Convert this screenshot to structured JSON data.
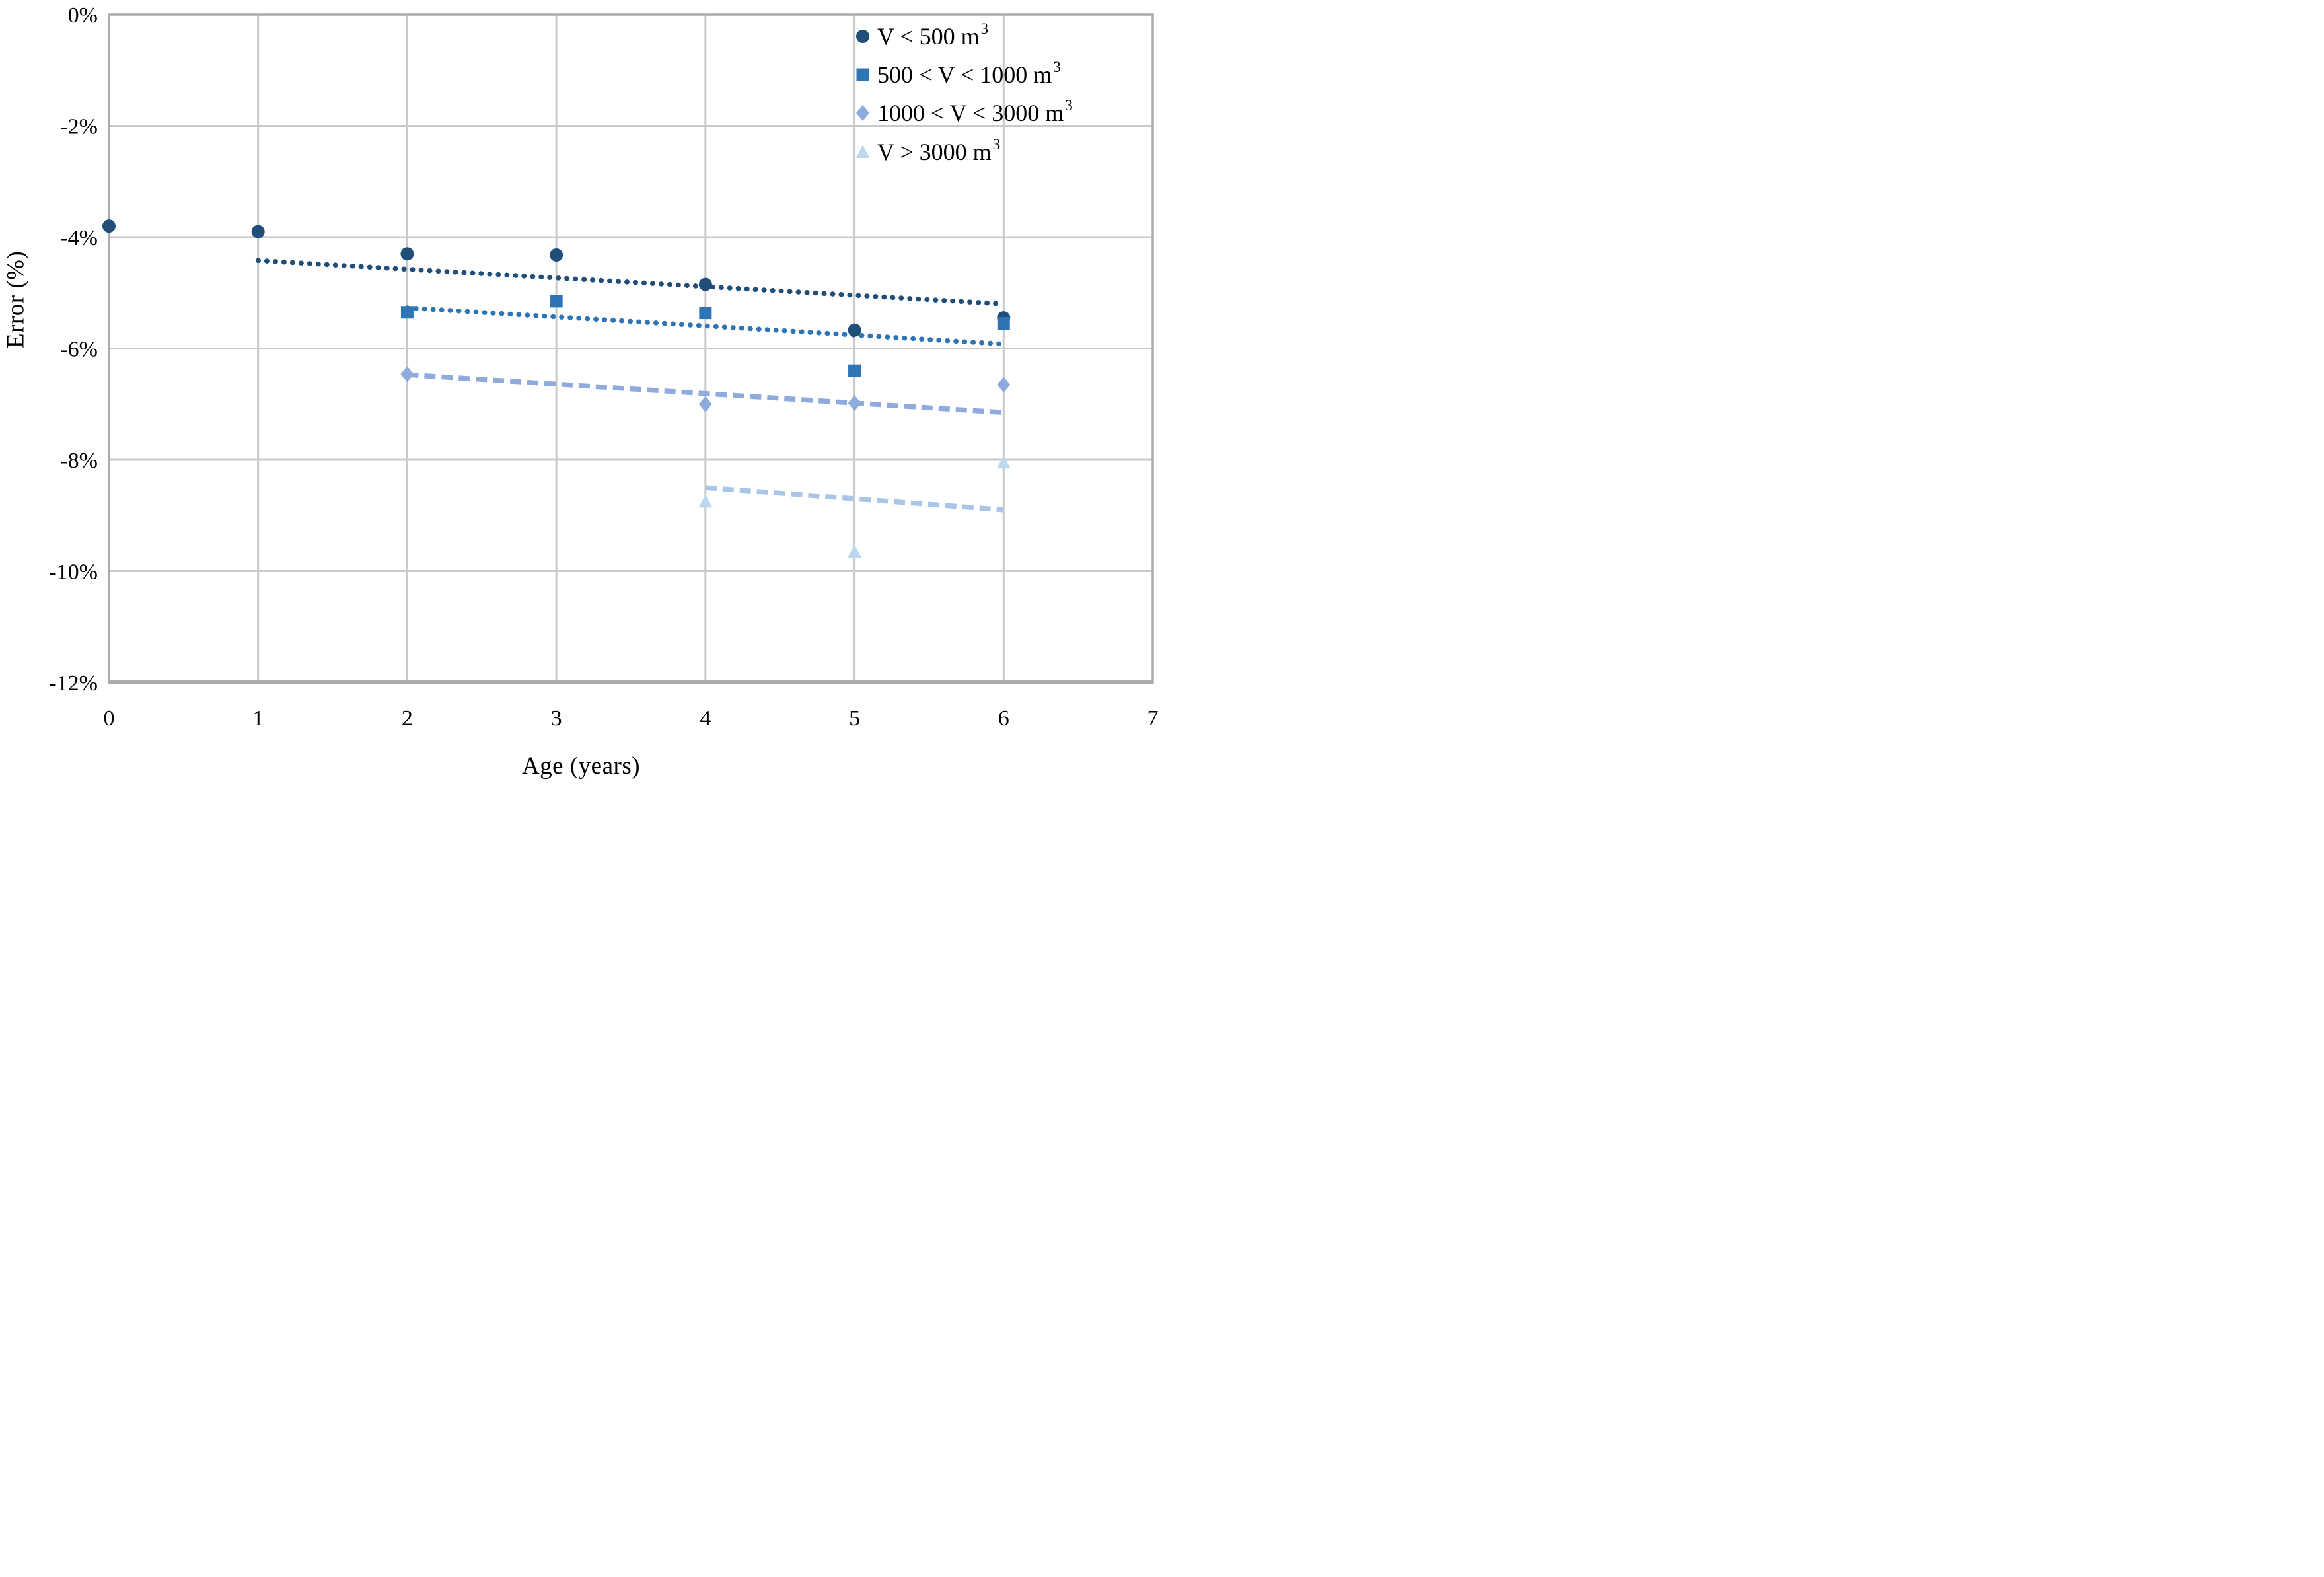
{
  "chart_data": {
    "type": "scatter",
    "title": "",
    "xlabel": "Age (years)",
    "ylabel": "Error (%)",
    "x_range": [
      0,
      7
    ],
    "y_range": [
      -12,
      0
    ],
    "x_ticks": [
      "0",
      "1",
      "2",
      "3",
      "4",
      "5",
      "6",
      "7"
    ],
    "y_ticks": [
      {
        "label": "0%",
        "value": 0
      },
      {
        "label": "-2%",
        "value": -2
      },
      {
        "label": "-4%",
        "value": -4
      },
      {
        "label": "-6%",
        "value": -6
      },
      {
        "label": "-8%",
        "value": -8
      },
      {
        "label": "-10%",
        "value": -10
      },
      {
        "label": "-12%",
        "value": -12
      }
    ],
    "grid": true,
    "legend_position": "top-right",
    "series": [
      {
        "name_base": "V < 500 m",
        "name_sup": "3",
        "marker": "circle",
        "color": "#1F4E79",
        "points": [
          [
            0,
            -3.8
          ],
          [
            1,
            -3.9
          ],
          [
            2,
            -4.3
          ],
          [
            3,
            -4.32
          ],
          [
            4,
            -4.85
          ],
          [
            5,
            -5.67
          ],
          [
            6,
            -5.45
          ]
        ],
        "trendline": {
          "style": "dotted",
          "from": [
            1,
            -4.42
          ],
          "to": [
            6,
            -5.2
          ]
        }
      },
      {
        "name_base": "500 < V < 1000 m",
        "name_sup": "3",
        "marker": "square",
        "color": "#2E75B6",
        "points": [
          [
            2,
            -5.35
          ],
          [
            3,
            -5.15
          ],
          [
            4,
            -5.36
          ],
          [
            5,
            -6.4
          ],
          [
            6,
            -5.55
          ]
        ],
        "trendline": {
          "style": "dotted",
          "from": [
            2,
            -5.27
          ],
          "to": [
            6,
            -5.92
          ]
        }
      },
      {
        "name_base": "1000 < V < 3000 m",
        "name_sup": "3",
        "marker": "diamond",
        "color": "#8FAADC",
        "points": [
          [
            2,
            -6.46
          ],
          [
            4,
            -7.0
          ],
          [
            5,
            -6.98
          ],
          [
            6,
            -6.65
          ]
        ],
        "trendline": {
          "style": "dashed",
          "from": [
            2,
            -6.47
          ],
          "to": [
            6,
            -7.15
          ]
        }
      },
      {
        "name_base": "V > 3000 m",
        "name_sup": "3",
        "marker": "triangle",
        "color": "#BDD7EE",
        "line_color": "#A9C5E8",
        "points": [
          [
            4,
            -8.75
          ],
          [
            5,
            -9.65
          ],
          [
            6,
            -8.05
          ]
        ],
        "trendline": {
          "style": "dashed",
          "from": [
            4,
            -8.5
          ],
          "to": [
            6,
            -8.9
          ]
        }
      }
    ],
    "colors": {
      "gridline": "#C9C9C9",
      "axis_border": "#ACACAC",
      "text": "#000000",
      "background": "#FFFFFF"
    }
  }
}
